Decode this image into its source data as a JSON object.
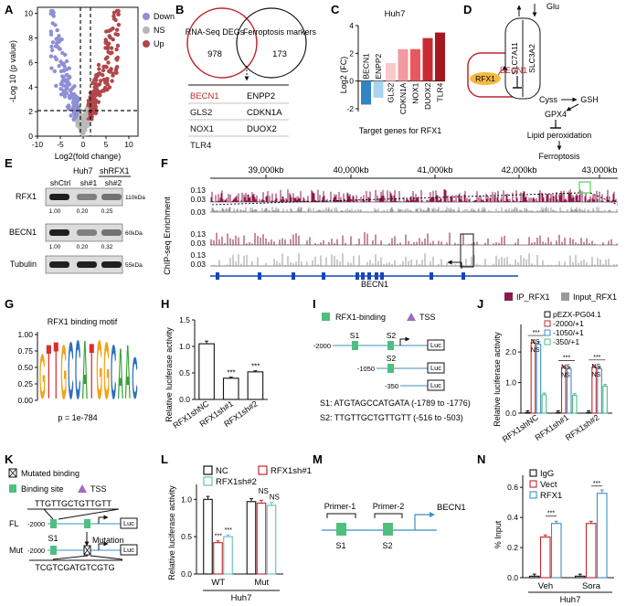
{
  "panel_labels": [
    "A",
    "B",
    "C",
    "D",
    "E",
    "F",
    "G",
    "H",
    "I",
    "J",
    "K",
    "L",
    "M",
    "N"
  ],
  "colors": {
    "red": "#c0272d",
    "blue": "#3b7fc4",
    "lightblue": "#7cc4e0",
    "maroon": "#8b1a4a",
    "gray": "#9a9a9a",
    "green": "#4fbf7f",
    "purple": "#a06ac0"
  },
  "panelA": {
    "ylabel": "-Log 10 (p value)",
    "xlabel": "Log2(fold change)",
    "legend": [
      "Down",
      "NS",
      "Up"
    ],
    "chart_data": {
      "type": "scatter",
      "title": "",
      "xlabel": "Log2(fold change)",
      "ylabel": "-Log 10 (p value)",
      "xticks": [
        "-10",
        "-5",
        "0",
        "5",
        "10"
      ],
      "yticks": [
        "0",
        "2",
        "4",
        "6",
        "8",
        "10"
      ],
      "xlim": [
        -10,
        12
      ],
      "ylim": [
        0,
        10.5
      ],
      "series": [
        {
          "name": "Down"
        },
        {
          "name": "NS"
        },
        {
          "name": "Up"
        }
      ]
    }
  },
  "panelB": {
    "left_title": "RNA-Seq DEGs",
    "left_count": "978",
    "right_title": "Ferroptosis markers",
    "right_count": "173",
    "rows": [
      [
        "BECN1",
        "ENPP2"
      ],
      [
        "GLS2",
        "CDKN1A"
      ],
      [
        "NOX1",
        "DUOX2"
      ],
      [
        "TLR4",
        ""
      ]
    ]
  },
  "panelC": {
    "chart_data": {
      "type": "bar",
      "title": "Huh7",
      "ylabel": "Log2 (FC)",
      "xlabel": "Target genes for RFX1",
      "categories": [
        "BECN1",
        "ENPP2",
        "GLS2",
        "CDKN1A",
        "NOX1",
        "DUOX2",
        "TLR4"
      ],
      "values": [
        -1.7,
        -1.2,
        1.3,
        2.3,
        2.3,
        3.1,
        3.5
      ],
      "yticks": [
        "-2",
        "0",
        "2",
        "4"
      ],
      "ylim": [
        -2.2,
        4
      ]
    }
  },
  "panelD": {
    "labels": {
      "glu": "Glu",
      "slc7a11": "SLC7A11",
      "slc3a2": "SLC3A2",
      "rfx1": "RFX1",
      "becn1": "BECN1",
      "cyss": "Cyss",
      "gsh": "GSH",
      "gpx4": "GPX4",
      "lipid": "Lipid peroxidation",
      "ferro": "Ferroptosis"
    }
  },
  "panelE": {
    "cell": "Huh7",
    "group": "shRFX1",
    "lanes": [
      "shCtrl",
      "sh#1",
      "sh#2"
    ],
    "blots": [
      {
        "name": "RFX1",
        "size": "110kDa",
        "quant": [
          "1.00",
          "0.20",
          "0.25"
        ]
      },
      {
        "name": "BECN1",
        "size": "60kDa",
        "quant": [
          "1.00",
          "0.20",
          "0.32"
        ]
      },
      {
        "name": "Tubulin",
        "size": "55kDa",
        "quant": []
      }
    ]
  },
  "panelF": {
    "ylabel": "ChIP-seq Enrichment",
    "coords": [
      "39,000kb",
      "40,000kb",
      "41,000kb",
      "42,000kb",
      "43,000kb"
    ],
    "yticks": [
      "0.13",
      "0.03"
    ],
    "gene": "BECN1",
    "legend": [
      "IP_RFX1",
      "Input_RFX1"
    ]
  },
  "panelG": {
    "title": "RFX1 binding motif",
    "yticks": [
      "1.00",
      "0.75",
      "0.50",
      "0.25",
      "0.00"
    ],
    "pvalue": "p = 1e-784",
    "logo": "GTTGCCATGGCAAC"
  },
  "panelH": {
    "chart_data": {
      "type": "bar",
      "ylabel": "Relative luciferase activity",
      "categories": [
        "RFX1shNC",
        "RFX1sh#1",
        "RFX1sh#2"
      ],
      "values": [
        1.05,
        0.4,
        0.52
      ],
      "errors": [
        0.05,
        0.02,
        0.02
      ],
      "sig": [
        "",
        "***",
        "***"
      ],
      "yticks": [
        "0.0",
        "0.5",
        "1.0",
        "1.5"
      ],
      "ylim": [
        0,
        1.5
      ]
    }
  },
  "panelI": {
    "legend": {
      "binding": "RFX1-binding",
      "tss": "TSS"
    },
    "constructs": [
      "-2000",
      "-1050",
      "-350"
    ],
    "sites": [
      "S1",
      "S2",
      "S2"
    ],
    "luc": "Luc",
    "seqs": [
      "S1: ATGTAGCCATGATA (-1789 to -1776)",
      "S2: TTGTTGCTGTTGTT (-516 to -503)"
    ]
  },
  "panelJ": {
    "chart_data": {
      "type": "bar",
      "ylabel": "Relative luciferase activity",
      "categories": [
        "RFX1shNC",
        "RFX1sh#1",
        "RFX1sh#2"
      ],
      "series": [
        {
          "name": "pEZX-PG04.1",
          "values": [
            0.02,
            0.02,
            0.02
          ]
        },
        {
          "name": "-2000/+1",
          "values": [
            2.3,
            1.48,
            1.5
          ]
        },
        {
          "name": "-1050/+1",
          "values": [
            2.25,
            1.45,
            1.45
          ]
        },
        {
          "name": "-350/+1",
          "values": [
            0.6,
            0.58,
            0.88
          ]
        }
      ],
      "sig": [
        "***",
        "***",
        "***"
      ],
      "ns": [
        "NS",
        "NS"
      ],
      "yticks": [
        "0.0",
        "1.0",
        "2.0"
      ],
      "ylim": [
        0,
        2.9
      ]
    }
  },
  "panelK": {
    "legend": {
      "mutated": "Mutated binding",
      "binding": "Binding site",
      "tss": "TSS"
    },
    "seq_wt": "TTGTTGCTGTTGTT",
    "seq_mut": "TCGTCGATGTCGTG",
    "rows": [
      "FL",
      "Mut"
    ],
    "pos": "-2000",
    "site": "S1",
    "mutation": "Mutation",
    "luc": "Luc"
  },
  "panelL": {
    "chart_data": {
      "type": "bar",
      "ylabel": "Relative luciferase activity",
      "categories": [
        "WT",
        "Mut"
      ],
      "xgroup": "Huh7",
      "series": [
        {
          "name": "NC",
          "values": [
            1.0,
            0.97
          ]
        },
        {
          "name": "RFX1sh#1",
          "values": [
            0.42,
            0.95
          ]
        },
        {
          "name": "RFX1sh#2",
          "values": [
            0.5,
            0.92
          ]
        }
      ],
      "sig": [
        "***",
        "***",
        "NS",
        "NS"
      ],
      "yticks": [
        "0.0",
        "0.5",
        "1.0"
      ],
      "ylim": [
        0,
        1.2
      ]
    }
  },
  "panelM": {
    "primers": [
      "Primer-1",
      "Primer-2"
    ],
    "sites": [
      "S1",
      "S2"
    ],
    "gene": "BECN1"
  },
  "panelN": {
    "chart_data": {
      "type": "bar",
      "ylabel": "% Input",
      "categories": [
        "Veh",
        "Sora"
      ],
      "xgroup": "Huh7",
      "series": [
        {
          "name": "IgG",
          "values": [
            0.01,
            0.01
          ]
        },
        {
          "name": "Vect",
          "values": [
            0.27,
            0.36
          ]
        },
        {
          "name": "RFX1",
          "values": [
            0.36,
            0.56
          ]
        }
      ],
      "sig": [
        "***",
        "***"
      ],
      "yticks": [
        "0.0",
        "0.2",
        "0.4",
        "0.6"
      ],
      "ylim": [
        0,
        0.68
      ]
    }
  }
}
